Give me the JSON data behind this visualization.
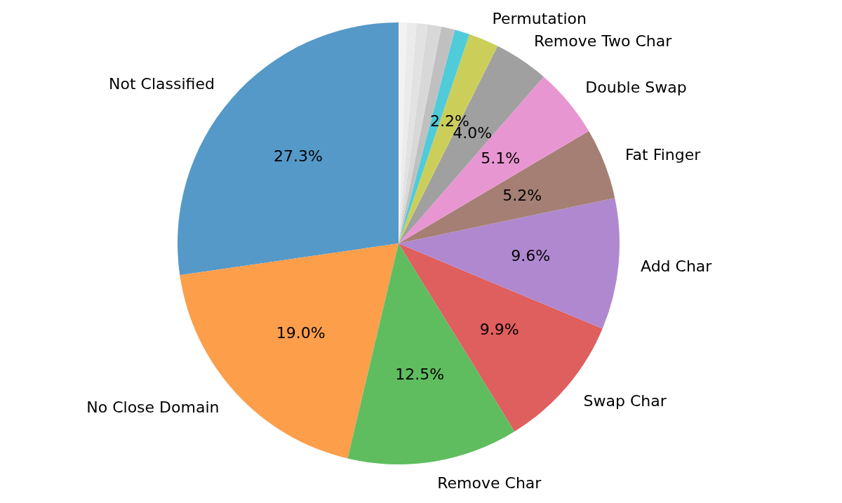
{
  "chart_data": {
    "type": "pie",
    "categories": [
      "Not Classified",
      "No Close Domain",
      "Remove Char",
      "Swap Char",
      "Add Char",
      "Fat Finger",
      "Double Swap",
      "Remove Two Char",
      "Permutation",
      null,
      null,
      null,
      null,
      null,
      null
    ],
    "values": [
      27.3,
      19.0,
      12.5,
      9.9,
      9.6,
      5.2,
      5.1,
      4.0,
      2.2,
      1.1,
      1.0,
      1.0,
      0.8,
      0.7,
      0.6
    ],
    "value_labels": [
      "27.3%",
      "19.0%",
      "12.5%",
      "9.9%",
      "9.6%",
      "5.2%",
      "5.1%",
      "4.0%",
      "2.2%",
      null,
      null,
      null,
      null,
      null,
      null
    ],
    "colors": [
      "#5599c8",
      "#fd9e4b",
      "#5fbd5f",
      "#df5e5e",
      "#b088d0",
      "#a57f74",
      "#e896d2",
      "#a0a0a0",
      "#ccce5a",
      "#4fcbd9",
      "#c0c0c0",
      "#d8d8d8",
      "#e2e2e2",
      "#ebebeb",
      "#f2f2f2"
    ]
  }
}
